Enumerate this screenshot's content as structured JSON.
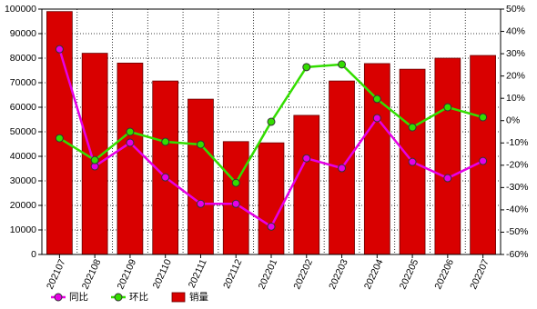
{
  "chart_data": {
    "type": "combo",
    "categories": [
      "202107",
      "202108",
      "202109",
      "202110",
      "202111",
      "202112",
      "202201",
      "202202",
      "202203",
      "202204",
      "202205",
      "202206",
      "202207"
    ],
    "series": [
      {
        "name": "销量",
        "type": "bar",
        "axis": "y",
        "color": "#d90000",
        "values": [
          99000,
          82000,
          78000,
          70700,
          63300,
          46000,
          45500,
          56700,
          70700,
          77800,
          75500,
          80000,
          81100
        ]
      },
      {
        "name": "同比",
        "type": "line",
        "axis": "y2",
        "color": "#e600e6",
        "values": [
          32,
          -20.5,
          -9.9,
          -25.4,
          -37.3,
          -37.3,
          -47.5,
          -16.9,
          -21.3,
          1.1,
          -18.5,
          -25.8,
          -18.1
        ]
      },
      {
        "name": "环比",
        "type": "line",
        "axis": "y2",
        "color": "#33dd00",
        "values": [
          -7.9,
          -17.7,
          -5,
          -9.5,
          -10.7,
          -27.9,
          -0.5,
          24,
          25.2,
          9.7,
          -3,
          6,
          1.5
        ]
      }
    ],
    "legend_order": [
      1,
      2,
      0
    ],
    "ylim": [
      0,
      100000
    ],
    "yticks": [
      0,
      10000,
      20000,
      30000,
      40000,
      50000,
      60000,
      70000,
      80000,
      90000,
      100000
    ],
    "y2lim": [
      -60,
      50
    ],
    "y2ticks": [
      {
        "value": -60,
        "label": "-60%"
      },
      {
        "value": -50,
        "label": "-50%"
      },
      {
        "value": -40,
        "label": "-40%"
      },
      {
        "value": -30,
        "label": "-30%"
      },
      {
        "value": -20,
        "label": "-20%"
      },
      {
        "value": -10,
        "label": "-10%"
      },
      {
        "value": 0,
        "label": "0%"
      },
      {
        "value": 10,
        "label": "10%"
      },
      {
        "value": 20,
        "label": "20%"
      },
      {
        "value": 30,
        "label": "30%"
      },
      {
        "value": 40,
        "label": "40%"
      },
      {
        "value": 50,
        "label": "50%"
      }
    ],
    "grid": true
  }
}
